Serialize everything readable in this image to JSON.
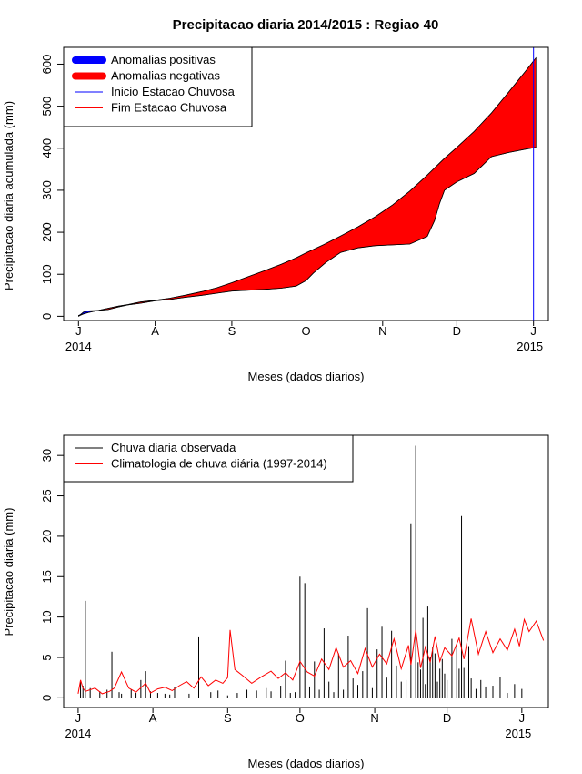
{
  "title": "Precipitacao diaria 2014/2015 : Regiao 40",
  "chart_data": [
    {
      "type": "area",
      "ylabel": "Precipitacao diaria acumulada (mm)",
      "xlabel": "Meses (dados diarios)",
      "ylim": [
        -10,
        640
      ],
      "yticks": [
        0,
        100,
        200,
        300,
        400,
        500,
        600
      ],
      "months": [
        "J",
        "A",
        "S",
        "O",
        "N",
        "D",
        "J"
      ],
      "month_days": [
        0,
        31,
        62,
        92,
        123,
        153,
        184
      ],
      "year_start": "2014",
      "year_end": "2015",
      "xlim": [
        -6,
        190
      ],
      "legend": [
        {
          "label": "Anomalias positivas",
          "color": "#0000ff",
          "kind": "thick"
        },
        {
          "label": "Anomalias negativas",
          "color": "#ff0000",
          "kind": "thick"
        },
        {
          "label": "Inicio Estacao Chuvosa",
          "color": "#0000ff",
          "kind": "thin"
        },
        {
          "label": "Fim Estacao Chuvosa",
          "color": "#ff0000",
          "kind": "thin"
        }
      ],
      "inicio_estacao_day": 184,
      "climatology_cumulative": {
        "days": [
          0,
          4,
          8,
          12,
          16,
          20,
          25,
          31,
          37,
          43,
          50,
          56,
          62,
          68,
          75,
          82,
          88,
          92,
          99,
          106,
          113,
          120,
          127,
          134,
          141,
          148,
          153,
          160,
          167,
          174,
          181,
          185
        ],
        "values": [
          2,
          9,
          14,
          19,
          24,
          28,
          34,
          38,
          43,
          50,
          59,
          68,
          80,
          93,
          108,
          124,
          139,
          151,
          170,
          191,
          213,
          237,
          265,
          298,
          336,
          376,
          402,
          440,
          484,
          534,
          585,
          615
        ]
      },
      "observed_cumulative": {
        "days": [
          0,
          2,
          4,
          8,
          12,
          16,
          20,
          25,
          31,
          37,
          43,
          50,
          56,
          62,
          68,
          75,
          82,
          88,
          92,
          95,
          100,
          106,
          113,
          120,
          127,
          134,
          141,
          144,
          146,
          148,
          153,
          160,
          167,
          174,
          181,
          185
        ],
        "values": [
          0,
          10,
          13,
          14,
          16,
          22,
          27,
          31,
          37,
          40,
          45,
          50,
          55,
          60,
          62,
          64,
          67,
          72,
          85,
          103,
          128,
          152,
          163,
          168,
          170,
          172,
          190,
          228,
          268,
          300,
          320,
          340,
          380,
          390,
          398,
          402
        ]
      }
    },
    {
      "type": "bar",
      "ylabel": "Precipitacao diaria (mm)",
      "xlabel": "Meses (dados diarios)",
      "ylim": [
        -1.2,
        32.5
      ],
      "yticks": [
        0,
        5,
        10,
        15,
        20,
        25,
        30
      ],
      "months": [
        "J",
        "A",
        "S",
        "O",
        "N",
        "D",
        "J"
      ],
      "month_days": [
        0,
        31,
        62,
        92,
        123,
        153,
        184
      ],
      "year_start": "2014",
      "year_end": "2015",
      "xlim": [
        -6,
        195
      ],
      "legend": [
        {
          "label": "Chuva diaria observada",
          "color": "#000000"
        },
        {
          "label": "Climatologia de chuva diária (1997-2014)",
          "color": "#ff0000"
        }
      ],
      "observed": {
        "days": [
          1,
          2,
          3,
          5,
          9,
          12,
          14,
          17,
          18,
          22,
          24,
          26,
          28,
          30,
          33,
          36,
          38,
          40,
          46,
          50,
          55,
          58,
          62,
          66,
          70,
          74,
          78,
          80,
          84,
          86,
          88,
          90,
          92,
          94,
          96,
          98,
          100,
          102,
          104,
          106,
          108,
          110,
          112,
          114,
          116,
          118,
          120,
          122,
          124,
          126,
          128,
          130,
          132,
          134,
          136,
          138,
          140,
          141,
          142,
          143,
          144,
          145,
          146,
          147,
          148,
          149,
          150,
          151,
          152,
          153,
          155,
          157,
          158,
          159,
          160,
          162,
          163,
          165,
          167,
          169,
          172,
          175,
          178,
          181,
          184
        ],
        "values": [
          2.0,
          1.5,
          12.0,
          1.2,
          0.8,
          1.0,
          5.7,
          0.7,
          0.5,
          1.0,
          0.6,
          2.2,
          3.3,
          0.8,
          0.6,
          0.5,
          0.4,
          1.3,
          0.5,
          7.6,
          0.7,
          0.9,
          0.3,
          0.6,
          1.0,
          0.9,
          1.2,
          0.8,
          1.5,
          4.6,
          0.6,
          0.7,
          15.0,
          14.2,
          1.4,
          4.5,
          1.0,
          8.6,
          2.0,
          0.7,
          5.5,
          1.0,
          7.7,
          2.4,
          1.6,
          3.3,
          11.1,
          1.2,
          6.0,
          8.8,
          2.5,
          8.3,
          4.0,
          2.0,
          2.2,
          21.6,
          31.2,
          4.4,
          3.5,
          9.9,
          1.7,
          11.3,
          5.1,
          6.3,
          5.5,
          2.0,
          3.6,
          4.8,
          3.0,
          2.2,
          7.3,
          6.5,
          3.6,
          22.5,
          3.7,
          6.4,
          2.4,
          1.1,
          2.2,
          1.4,
          1.5,
          2.6,
          0.6,
          1.7,
          1.1
        ]
      },
      "climatology": {
        "days": [
          0,
          1,
          2,
          3,
          5,
          7,
          10,
          13,
          15,
          18,
          21,
          24,
          28,
          30,
          33,
          36,
          39,
          42,
          45,
          48,
          51,
          54,
          57,
          60,
          62,
          63,
          65,
          68,
          72,
          76,
          80,
          83,
          86,
          89,
          92,
          95,
          98,
          101,
          104,
          107,
          110,
          113,
          116,
          119,
          122,
          125,
          128,
          131,
          134,
          137,
          138,
          140,
          142,
          144,
          146,
          148,
          150,
          152,
          155,
          158,
          160,
          163,
          166,
          169,
          172,
          175,
          178,
          181,
          183,
          185,
          187,
          190,
          193
        ],
        "values": [
          0.5,
          2.2,
          1.2,
          0.8,
          1.0,
          1.2,
          0.5,
          0.8,
          1.2,
          3.2,
          1.2,
          0.7,
          1.8,
          0.6,
          1.1,
          1.3,
          0.9,
          1.5,
          2.0,
          1.2,
          2.6,
          1.5,
          2.2,
          1.8,
          2.5,
          8.4,
          3.5,
          2.8,
          1.8,
          2.6,
          3.3,
          2.4,
          3.1,
          2.2,
          4.5,
          3.2,
          2.7,
          4.8,
          3.5,
          6.2,
          3.8,
          4.6,
          3.0,
          6.1,
          3.8,
          5.4,
          4.2,
          7.3,
          3.6,
          6.5,
          4.1,
          8.4,
          3.7,
          6.3,
          4.4,
          7.6,
          4.5,
          6.2,
          5.2,
          7.4,
          4.8,
          9.8,
          5.4,
          8.2,
          5.6,
          7.3,
          5.9,
          8.5,
          6.4,
          9.7,
          8.2,
          9.5,
          7.1
        ]
      }
    }
  ]
}
